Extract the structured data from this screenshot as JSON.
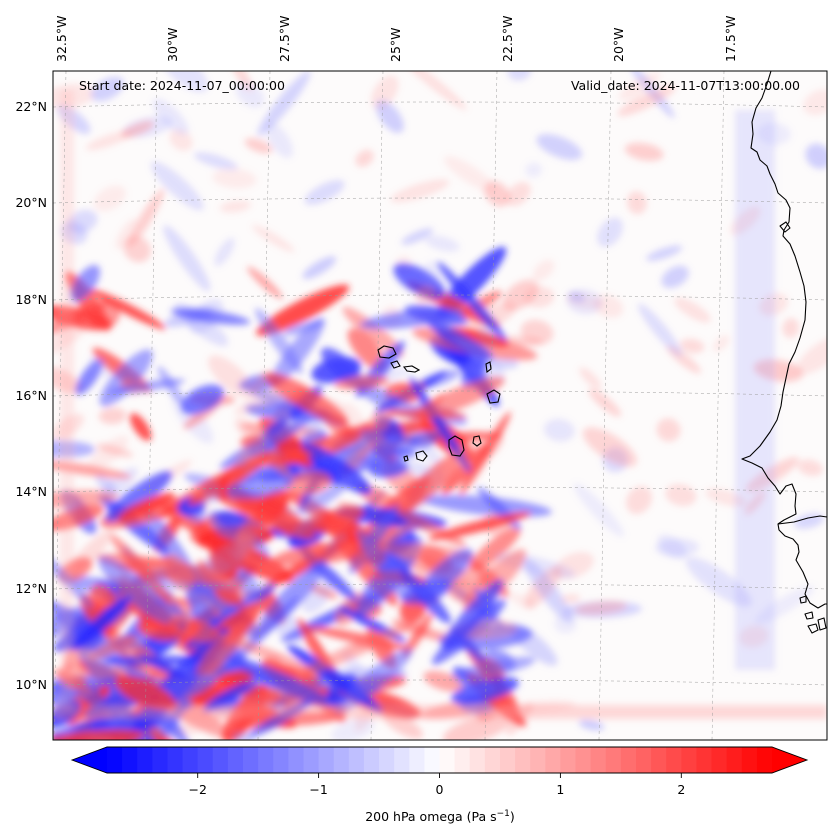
{
  "map": {
    "start_label": "Start date: 2024-11-07_00:00:00",
    "valid_label": "Valid_date: 2024-11-07T13:00:00.00",
    "lon_labels": [
      "32.5°W",
      "30°W",
      "27.5°W",
      "25°W",
      "22.5°W",
      "20°W",
      "17.5°W"
    ],
    "lat_labels": [
      "22°N",
      "20°N",
      "18°N",
      "16°N",
      "14°N",
      "12°N",
      "10°N"
    ],
    "gridlines": true,
    "colormap": "bwr",
    "colors": {
      "negative": "#0000ff",
      "zero": "#ffffff",
      "positive": "#ff0000",
      "coast": "#000000"
    }
  },
  "colorbar": {
    "label": "200 hPa omega (Pa s",
    "label_sup": "−1",
    "label_end": ")",
    "range": [
      -2.75,
      2.75
    ],
    "ticks": [
      -2,
      -1,
      0,
      1,
      2
    ],
    "tick_labels": [
      "−2",
      "−1",
      "0",
      "1",
      "2"
    ]
  }
}
